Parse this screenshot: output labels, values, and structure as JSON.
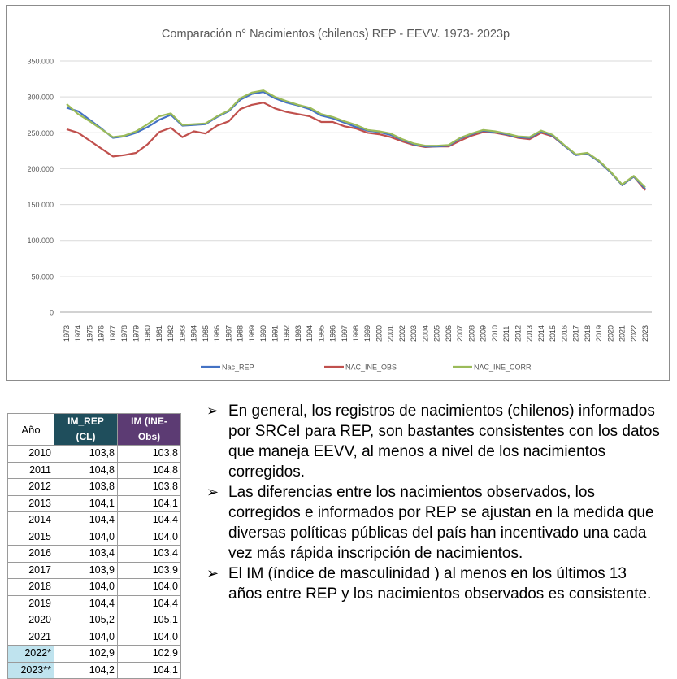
{
  "chart_data": {
    "type": "line",
    "title": "Comparación n° Nacimientos (chilenos) REP - EEVV. 1973- 2023p",
    "xlabel": "",
    "ylabel": "",
    "ylim": [
      0,
      350000
    ],
    "yticks": [
      0,
      50000,
      100000,
      150000,
      200000,
      250000,
      300000,
      350000
    ],
    "ytick_labels": [
      "0",
      "50.000",
      "100.000",
      "150.000",
      "200.000",
      "250.000",
      "300.000",
      "350.000"
    ],
    "grid": "horizontal",
    "legend_position": "bottom",
    "categories": [
      "1973",
      "1974",
      "1975",
      "1976",
      "1977",
      "1978",
      "1979",
      "1980",
      "1981",
      "1982",
      "1983",
      "1984",
      "1985",
      "1986",
      "1987",
      "1988",
      "1989",
      "1990",
      "1991",
      "1992",
      "1993",
      "1994",
      "1995",
      "1996",
      "1997",
      "1998",
      "1999",
      "2000",
      "2001",
      "2002",
      "2003",
      "2004",
      "2005",
      "2006",
      "2007",
      "2008",
      "2009",
      "2010",
      "2011",
      "2012",
      "2013",
      "2014",
      "2015",
      "2016",
      "2017",
      "2018",
      "2019",
      "2020",
      "2021",
      "2022",
      "2023"
    ],
    "series": [
      {
        "name": "Nac_REP",
        "color": "#4472c4",
        "values": [
          285000,
          280000,
          268000,
          256000,
          243000,
          245000,
          250000,
          258000,
          268000,
          275000,
          260000,
          261000,
          262000,
          272000,
          280000,
          296000,
          304000,
          307000,
          298000,
          292000,
          288000,
          283000,
          274000,
          270000,
          264000,
          258000,
          253000,
          251000,
          247000,
          240000,
          234000,
          231000,
          231000,
          232000,
          242000,
          248000,
          253000,
          251000,
          248000,
          244000,
          243000,
          252000,
          246000,
          232000,
          219000,
          221000,
          210000,
          195000,
          177000,
          189000,
          172000
        ]
      },
      {
        "name": "NAC_INE_OBS",
        "color": "#c0504d",
        "values": [
          255000,
          250000,
          239000,
          228000,
          217000,
          219000,
          222000,
          234000,
          251000,
          257000,
          244000,
          252000,
          249000,
          260000,
          266000,
          283000,
          289000,
          292000,
          284000,
          279000,
          276000,
          273000,
          265000,
          265000,
          259000,
          256000,
          250000,
          248000,
          244000,
          238000,
          233000,
          230000,
          231000,
          231000,
          239000,
          246000,
          251000,
          250000,
          247000,
          243000,
          241000,
          250000,
          245000,
          232000,
          219000,
          221000,
          210000,
          195000,
          177000,
          189000,
          170000
        ]
      },
      {
        "name": "NAC_INE_CORR",
        "color": "#9bbb59",
        "values": [
          290000,
          276000,
          266000,
          255000,
          244000,
          246000,
          252000,
          262000,
          273000,
          277000,
          261000,
          262000,
          263000,
          273000,
          281000,
          298000,
          306000,
          309000,
          300000,
          294000,
          289000,
          285000,
          276000,
          272000,
          266000,
          261000,
          254000,
          252000,
          249000,
          241000,
          235000,
          232000,
          232000,
          233000,
          243000,
          249000,
          254000,
          252000,
          249000,
          245000,
          244000,
          253000,
          247000,
          233000,
          220000,
          222000,
          211000,
          196000,
          178000,
          190000,
          174000
        ]
      }
    ]
  },
  "table": {
    "headers": [
      "Año",
      "IM_REP (CL)",
      "IM (INE-Obs)"
    ],
    "rows": [
      {
        "year": "2010",
        "rep": "103,8",
        "ine": "103,8",
        "hl": false
      },
      {
        "year": "2011",
        "rep": "104,8",
        "ine": "104,8",
        "hl": false
      },
      {
        "year": "2012",
        "rep": "103,8",
        "ine": "103,8",
        "hl": false
      },
      {
        "year": "2013",
        "rep": "104,1",
        "ine": "104,1",
        "hl": false
      },
      {
        "year": "2014",
        "rep": "104,4",
        "ine": "104,4",
        "hl": false
      },
      {
        "year": "2015",
        "rep": "104,0",
        "ine": "104,0",
        "hl": false
      },
      {
        "year": "2016",
        "rep": "103,4",
        "ine": "103,4",
        "hl": false
      },
      {
        "year": "2017",
        "rep": "103,9",
        "ine": "103,9",
        "hl": false
      },
      {
        "year": "2018",
        "rep": "104,0",
        "ine": "104,0",
        "hl": false
      },
      {
        "year": "2019",
        "rep": "104,4",
        "ine": "104,4",
        "hl": false
      },
      {
        "year": "2020",
        "rep": "105,2",
        "ine": "105,1",
        "hl": false
      },
      {
        "year": "2021",
        "rep": "104,0",
        "ine": "104,0",
        "hl": false
      },
      {
        "year": "2022*",
        "rep": "102,9",
        "ine": "102,9",
        "hl": true
      },
      {
        "year": "2023**",
        "rep": "104,2",
        "ine": "104,1",
        "hl": true
      }
    ]
  },
  "bullets": {
    "marker": "➢",
    "items": [
      "En general, los registros de nacimientos (chilenos) informados por SRCeI para REP, son bastantes consistentes con los datos que maneja EEVV, al menos a nivel de los nacimientos corregidos.",
      "Las diferencias entre los nacimientos observados, los corregidos e informados por REP se ajustan en la medida que diversas políticas públicas del país han incentivado una cada vez más rápida inscripción de nacimientos.",
      "El IM (índice de masculinidad ) al menos en los últimos 13 años entre REP y los nacimientos observados es consistente."
    ]
  }
}
